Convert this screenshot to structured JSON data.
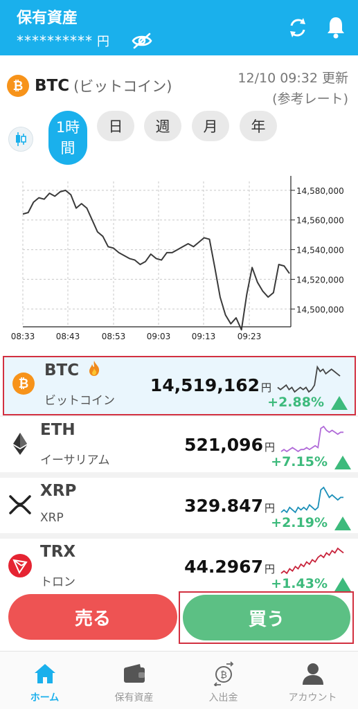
{
  "header": {
    "title": "保有資産",
    "balance_masked": "**********",
    "currency": "円"
  },
  "coin": {
    "ticker": "BTC",
    "jname": "(ビットコイン)",
    "updated_time": "12/10 09:32 更新",
    "rate_note": "(参考レート)"
  },
  "tabs": {
    "hour_line1": "1時",
    "hour_line2": "間",
    "day": "日",
    "week": "週",
    "month": "月",
    "year": "年"
  },
  "chart_data": {
    "type": "line",
    "title": "",
    "xlabel": "",
    "ylabel": "",
    "x_ticks": [
      "08:33",
      "08:43",
      "08:53",
      "09:03",
      "09:13",
      "09:23"
    ],
    "y_ticks": [
      "14,580,000",
      "14,560,000",
      "14,540,000",
      "14,520,000",
      "14,500,000"
    ],
    "ylim": [
      14488000,
      14586000
    ],
    "grid": true,
    "series": [
      {
        "values": [
          14564000,
          14565000,
          14572000,
          14575000,
          14574000,
          14578000,
          14576000,
          14579000,
          14580000,
          14577000,
          14568000,
          14571000,
          14568000,
          14560000,
          14552000,
          14549000,
          14542000,
          14541000,
          14538000,
          14536000,
          14534000,
          14533000,
          14530000,
          14532000,
          14537000,
          14534000,
          14533000,
          14538000,
          14538000,
          14540000,
          14542000,
          14544000,
          14542000,
          14545000,
          14548000,
          14547000,
          14528000,
          14508000,
          14496000,
          14490000,
          14494000,
          14486000,
          14510000,
          14528000,
          14518000,
          14512000,
          14508000,
          14511000,
          14530000,
          14529000,
          14524000
        ]
      }
    ]
  },
  "rows": [
    {
      "sym": "BTC",
      "name": "ビットコイン",
      "price": "14,519,162",
      "yen": "円",
      "change": "+2.88%",
      "spark_color": "#444444",
      "spark": [
        5,
        4,
        5,
        6,
        4,
        5,
        3,
        4,
        5,
        4,
        5,
        3,
        4,
        6,
        14,
        12,
        13,
        11,
        12,
        13,
        12,
        11,
        10
      ]
    },
    {
      "sym": "ETH",
      "name": "イーサリアム",
      "price": "521,096",
      "yen": "円",
      "change": "+7.15%",
      "spark_color": "#b06ad8",
      "spark": [
        4,
        5,
        4,
        5,
        6,
        5,
        4,
        5,
        5,
        6,
        5,
        6,
        7,
        6,
        16,
        17,
        15,
        14,
        15,
        14,
        13,
        14,
        14
      ]
    },
    {
      "sym": "XRP",
      "name": "XRP",
      "price": "329.847",
      "yen": "円",
      "change": "+2.19%",
      "spark_color": "#1a8fb8",
      "spark": [
        4,
        5,
        4,
        6,
        5,
        4,
        6,
        5,
        6,
        5,
        7,
        6,
        5,
        6,
        13,
        14,
        12,
        10,
        11,
        10,
        9,
        10,
        10
      ]
    },
    {
      "sym": "TRX",
      "name": "トロン",
      "price": "44.2967",
      "yen": "円",
      "change": "+1.43%",
      "spark_color": "#c8243c",
      "spark": [
        3,
        4,
        3,
        5,
        4,
        6,
        5,
        7,
        6,
        8,
        7,
        9,
        8,
        10,
        11,
        10,
        12,
        11,
        13,
        12,
        14,
        13,
        12
      ]
    }
  ],
  "actions": {
    "sell": "売る",
    "buy": "買う"
  },
  "nav": {
    "home": "ホーム",
    "assets": "保有資産",
    "deposit": "入出金",
    "account": "アカウント"
  }
}
